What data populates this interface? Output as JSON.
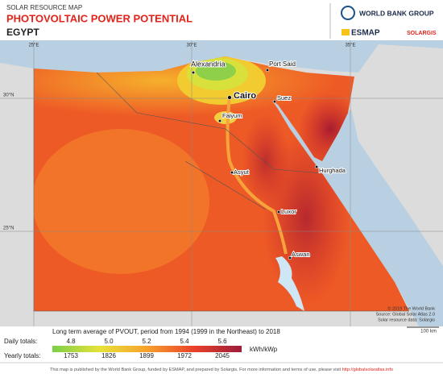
{
  "header": {
    "subtitle": "SOLAR RESOURCE MAP",
    "title": "PHOTOVOLTAIC POWER POTENTIAL",
    "country": "EGYPT"
  },
  "logos": {
    "world_bank": "WORLD BANK GROUP",
    "esmap": "ESMAP",
    "solargis": "SOLARGIS"
  },
  "map": {
    "grid_labels": [
      "25°E",
      "30°E",
      "35°E",
      "30°N",
      "25°N"
    ],
    "cities": [
      "Alexandria",
      "Port Said",
      "Cairo",
      "Suez",
      "Faiyum",
      "Asyut",
      "Hurghada",
      "Luxor",
      "Aswan"
    ],
    "credits": [
      "© 2019 The World Bank",
      "Source: Global Solar Atlas 2.0",
      "Solar resource data: Solargis"
    ],
    "scale": "100 km"
  },
  "legend": {
    "title": "Long term average of PVOUT, period from 1994 (1999 in the Northeast) to 2018",
    "daily_label": "Daily totals:",
    "daily": [
      "4.8",
      "5.0",
      "5.2",
      "5.4",
      "5.6"
    ],
    "yearly_label": "Yearly totals:",
    "yearly": [
      "1753",
      "1826",
      "1899",
      "1972",
      "2045"
    ],
    "unit": "kWh/kWp"
  },
  "footer": {
    "text": "This map is published by the World Bank Group, funded by ESMAP, and prepared by Solargis. For more information and terms of use, please visit ",
    "link": "http://globalsolaratlas.info"
  }
}
